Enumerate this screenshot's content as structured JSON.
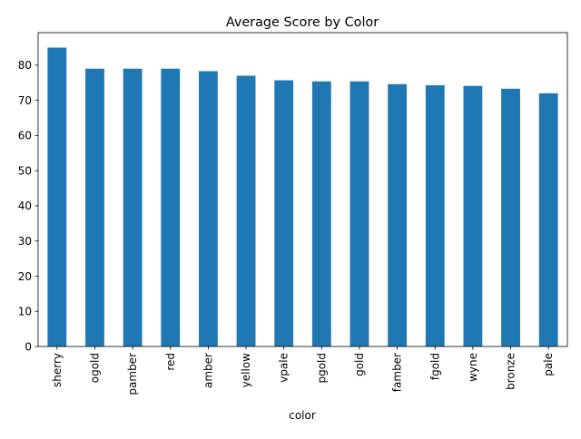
{
  "colors": {
    "bar": "#1f77b4",
    "axis": "#000000",
    "background": "#ffffff"
  },
  "chart_data": {
    "type": "bar",
    "title": "Average Score by Color",
    "xlabel": "color",
    "ylabel": "",
    "categories": [
      "sherry",
      "ogold",
      "pamber",
      "red",
      "amber",
      "yellow",
      "vpale",
      "pgold",
      "gold",
      "famber",
      "fgold",
      "wyne",
      "bronze",
      "pale"
    ],
    "values": [
      85.0,
      79.0,
      79.0,
      79.0,
      78.3,
      77.0,
      75.7,
      75.4,
      75.4,
      74.6,
      74.3,
      74.1,
      73.3,
      72.0
    ],
    "yticks": [
      0,
      10,
      20,
      30,
      40,
      50,
      60,
      70,
      80
    ],
    "ylim": [
      0,
      89.25
    ],
    "grid": false,
    "legend": "none"
  }
}
